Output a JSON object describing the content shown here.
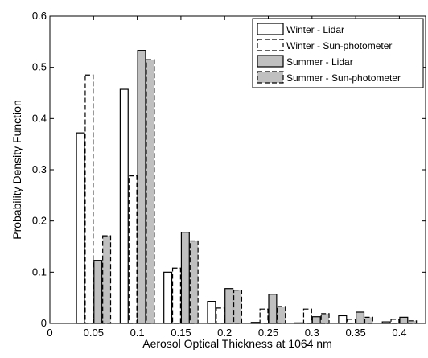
{
  "chart_data": {
    "type": "bar",
    "title": "",
    "xlabel": "Aerosol Optical Thickness at 1064 nm",
    "ylabel": "Probability Density Function",
    "xlim": [
      0,
      0.43
    ],
    "ylim": [
      0,
      0.6
    ],
    "x_ticks": [
      "0",
      "0.05",
      "0.1",
      "0.15",
      "0.2",
      "0.25",
      "0.3",
      "0.35",
      "0.4"
    ],
    "y_ticks": [
      "0",
      "0.1",
      "0.2",
      "0.3",
      "0.4",
      "0.5",
      "0.6"
    ],
    "categories": [
      0.05,
      0.1,
      0.15,
      0.2,
      0.25,
      0.3,
      0.35,
      0.4
    ],
    "grid": false,
    "legend_position": "top-right",
    "series": [
      {
        "name": "Winter - Lidar",
        "fill": "#ffffff",
        "stroke": "solid",
        "values": [
          0.372,
          0.457,
          0.1,
          0.043,
          0.002,
          0.001,
          0.015,
          0.003
        ]
      },
      {
        "name": "Winter - Sun-photometer",
        "fill": "#ffffff",
        "stroke": "dashed",
        "values": [
          0.485,
          0.288,
          0.108,
          0.03,
          0.028,
          0.028,
          0.008,
          0.008
        ]
      },
      {
        "name": "Summer - Lidar",
        "fill": "#c0c0c0",
        "stroke": "solid",
        "values": [
          0.123,
          0.533,
          0.178,
          0.068,
          0.057,
          0.013,
          0.022,
          0.012
        ]
      },
      {
        "name": "Summer - Sun-photometer",
        "fill": "#c0c0c0",
        "stroke": "dashed",
        "values": [
          0.171,
          0.515,
          0.161,
          0.065,
          0.033,
          0.019,
          0.012,
          0.005
        ]
      }
    ]
  }
}
